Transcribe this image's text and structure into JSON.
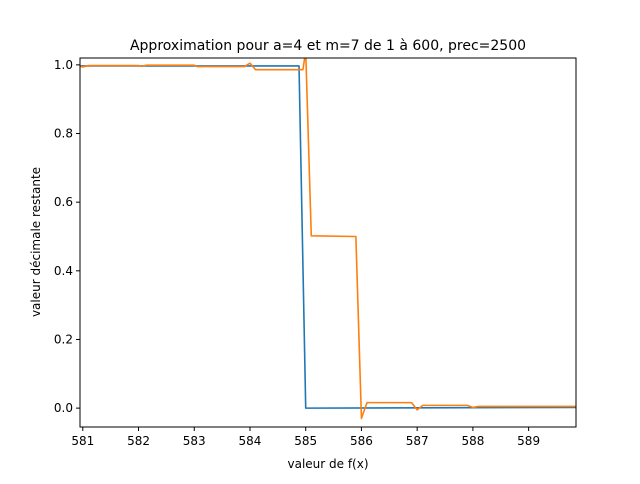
{
  "chart_data": {
    "type": "line",
    "title": "Approximation pour a=4 et m=7 de 1 à 600, prec=2500",
    "xlabel": "valeur de f(x)",
    "ylabel": "valeur décimale restante",
    "xlim": [
      580.95,
      589.85
    ],
    "ylim": [
      -0.055,
      1.02
    ],
    "xticks": [
      581,
      582,
      583,
      584,
      585,
      586,
      587,
      588,
      589
    ],
    "xtick_labels": [
      "581",
      "582",
      "583",
      "584",
      "585",
      "586",
      "587",
      "588",
      "589"
    ],
    "yticks": [
      0.0,
      0.2,
      0.4,
      0.6,
      0.8,
      1.0
    ],
    "ytick_labels": [
      "0.0",
      "0.2",
      "0.4",
      "0.6",
      "0.8",
      "1.0"
    ],
    "grid": false,
    "legend": "none",
    "series": [
      {
        "color": "#1f77b4",
        "points": [
          [
            580.95,
            0.997
          ],
          [
            581.0,
            0.997
          ],
          [
            584.88,
            0.997
          ],
          [
            585.0,
            0.0
          ],
          [
            589.85,
            0.002
          ]
        ]
      },
      {
        "color": "#ff7f0e",
        "points": [
          [
            580.95,
            0.996
          ],
          [
            581.0,
            0.994
          ],
          [
            581.1,
            0.998
          ],
          [
            582.0,
            0.998
          ],
          [
            582.05,
            0.996
          ],
          [
            582.15,
            0.999
          ],
          [
            583.0,
            0.999
          ],
          [
            583.05,
            0.995
          ],
          [
            583.9,
            0.995
          ],
          [
            584.0,
            1.005
          ],
          [
            584.1,
            0.986
          ],
          [
            584.95,
            0.986
          ],
          [
            585.0,
            1.04
          ],
          [
            585.1,
            0.502
          ],
          [
            585.9,
            0.5
          ],
          [
            586.0,
            -0.03
          ],
          [
            586.1,
            0.016
          ],
          [
            586.9,
            0.016
          ],
          [
            587.0,
            -0.005
          ],
          [
            587.1,
            0.008
          ],
          [
            587.9,
            0.008
          ],
          [
            588.0,
            0.002
          ],
          [
            588.1,
            0.005
          ],
          [
            589.85,
            0.005
          ]
        ]
      }
    ]
  }
}
